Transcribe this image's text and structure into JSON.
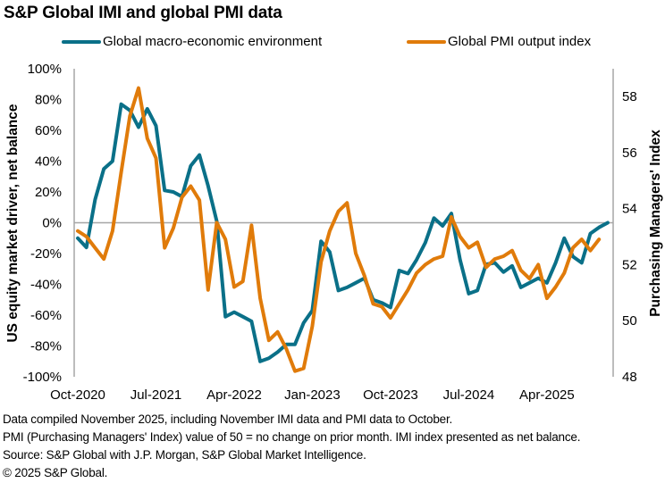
{
  "chart_data": {
    "type": "line",
    "title": "S&P Global IMI and global PMI data",
    "ylabel": "US equity market driver, net balance",
    "y2label": "Purchasing Managers' Index",
    "xlabel": "",
    "ylim": [
      -100,
      100
    ],
    "y2lim": [
      48,
      59
    ],
    "y_ticks": [
      "100%",
      "80%",
      "60%",
      "40%",
      "20%",
      "0%",
      "-20%",
      "-40%",
      "-60%",
      "-80%",
      "-100%"
    ],
    "y_tick_values": [
      100,
      80,
      60,
      40,
      20,
      0,
      -20,
      -40,
      -60,
      -80,
      -100
    ],
    "y2_ticks": [
      "58",
      "56",
      "54",
      "52",
      "50",
      "48"
    ],
    "y2_tick_values": [
      58,
      56,
      54,
      52,
      50,
      48
    ],
    "x_ticks": [
      "Oct-2020",
      "Jul-2021",
      "Apr-2022",
      "Jan-2023",
      "Oct-2023",
      "Jul-2024",
      "Apr-2025"
    ],
    "x_tick_month_index": [
      0,
      9,
      18,
      27,
      36,
      45,
      54
    ],
    "x_start": "Oct-2020",
    "legend_position": "top",
    "grid": false,
    "series": [
      {
        "name": "Global macro-economic environment",
        "axis": "left",
        "unit": "%",
        "color": "#0a7088",
        "start_month_index": 0,
        "values": [
          -10,
          -16,
          15,
          35,
          40,
          77,
          73,
          62,
          74,
          63,
          21,
          20,
          17,
          37,
          44,
          24,
          1,
          -61,
          -58,
          -61,
          -64,
          -90,
          -88,
          -84,
          -79,
          -79,
          -65,
          -57,
          -12,
          -19,
          -44,
          -42,
          -39,
          -36,
          -50,
          -52,
          -55,
          -31,
          -33,
          -24,
          -13,
          3,
          -2,
          6,
          -24,
          -46,
          -44,
          -27,
          -26,
          -32,
          -28,
          -42,
          -39,
          -36,
          -39,
          -26,
          -10,
          -22,
          -26,
          -7,
          -3,
          0
        ]
      },
      {
        "name": "Global PMI output index",
        "axis": "right",
        "unit": "",
        "color": "#e07b0a",
        "start_month_index": 0,
        "values": [
          53.2,
          53.0,
          52.6,
          52.2,
          53.2,
          55.3,
          57.3,
          58.3,
          56.5,
          55.8,
          52.6,
          53.3,
          54.4,
          54.8,
          54.3,
          51.1,
          53.5,
          52.9,
          51.2,
          51.4,
          53.4,
          50.8,
          49.3,
          49.6,
          49.0,
          48.2,
          48.3,
          49.8,
          52.1,
          53.2,
          53.9,
          54.2,
          52.4,
          51.6,
          50.6,
          50.5,
          50.1,
          50.6,
          51.1,
          51.7,
          52.0,
          52.2,
          52.3,
          53.7,
          53.0,
          52.6,
          52.8,
          51.9,
          52.2,
          52.3,
          52.5,
          51.8,
          51.5,
          52.0,
          50.8,
          51.2,
          51.7,
          52.6,
          52.9,
          52.5,
          52.9
        ]
      }
    ]
  },
  "footnotes": [
    "Data compiled November 2025, including November IMI data and PMI data to October.",
    "PMI (Purchasing Managers' Index) value of 50 = no change on prior month. IMI index presented as net balance.",
    "Source: S&P Global with J.P. Morgan, S&P Global Market Intelligence.",
    "© 2025 S&P Global."
  ],
  "colors": {
    "axis": "#a6a6a6",
    "zero_line": "#a6a6a6"
  }
}
